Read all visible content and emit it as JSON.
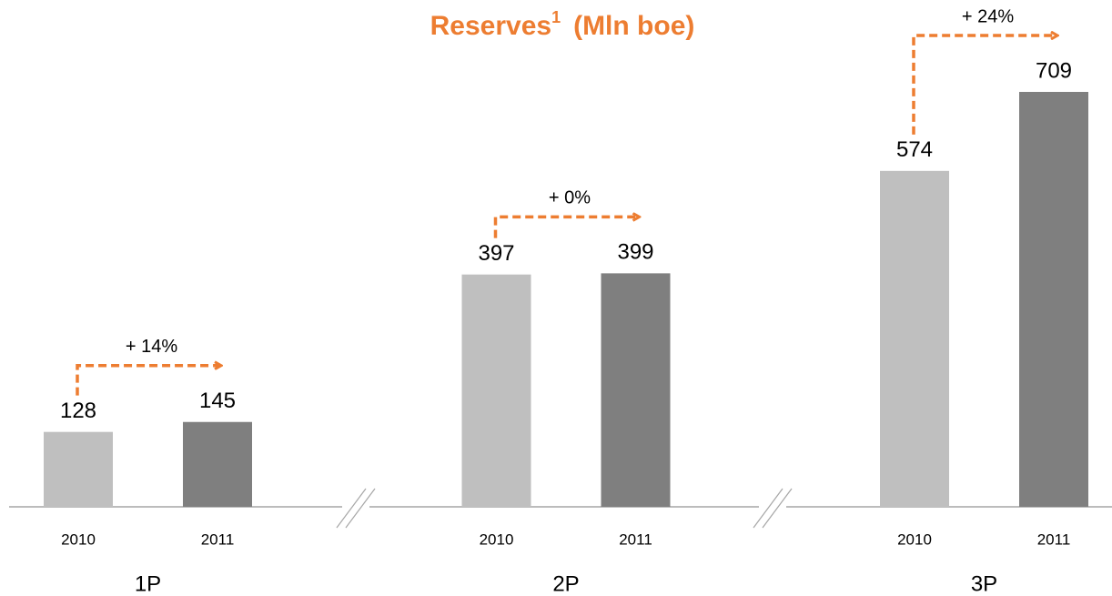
{
  "chart_data": {
    "type": "bar",
    "title": "Reserves",
    "title_superscript": "1",
    "title_unit": "(Mln boe)",
    "categories": [
      "1P",
      "2P",
      "3P"
    ],
    "series": [
      {
        "name": "2010",
        "color": "#bfbfbf",
        "values": [
          128,
          397,
          574
        ]
      },
      {
        "name": "2011",
        "color": "#7f7f7f",
        "values": [
          145,
          399,
          709
        ]
      }
    ],
    "annotations": [
      "+ 14%",
      "+ 0%",
      "+ 24%"
    ],
    "annotation_color": "#ed7d31"
  }
}
